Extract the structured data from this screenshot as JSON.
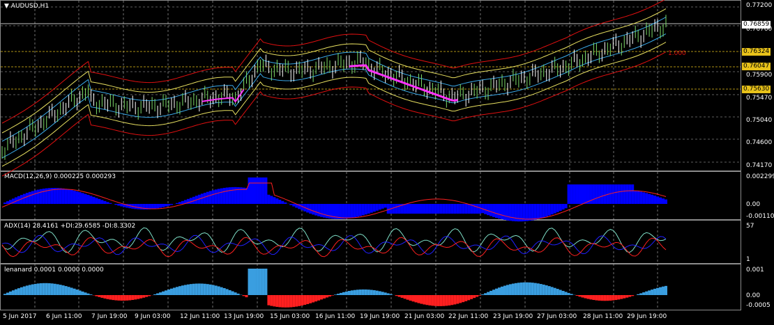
{
  "main": {
    "title": "AUDUSD,H1",
    "price_ticks": [
      "0.77200",
      "0.76760",
      "0.75900",
      "0.75470",
      "0.75040",
      "0.74600",
      "0.74170"
    ],
    "price_tags": [
      {
        "text": "0.76859",
        "bg": "#ffffff",
        "fg": "#000000"
      },
      {
        "text": "0.76324",
        "bg": "#e8c21a",
        "fg": "#000000"
      },
      {
        "text": "0.76047",
        "bg": "#e8c21a",
        "fg": "#000000"
      },
      {
        "text": "0.75630",
        "bg": "#e8c21a",
        "fg": "#000000"
      }
    ],
    "level_label": "1.000",
    "colors": {
      "bull": "#7ddc6a",
      "bear": "#ffffff",
      "band_red": "#e01010",
      "band_yellow": "#e8e060",
      "band_blue": "#3aa9e8",
      "highlight": "#ff33ff"
    }
  },
  "macd": {
    "header": "MACD(12,26,9) 0.000225 0.000293",
    "ticks": [
      "0.002299",
      "0.00",
      "-0.001105"
    ],
    "colors": {
      "hist": "#0000ff",
      "signal": "#ff2020"
    }
  },
  "adx": {
    "header": "ADX(14) 28.4161 +DI:29.6585 -DI:8.3302",
    "ticks": [
      "57",
      "1"
    ],
    "colors": {
      "adx": "#7fe0c8",
      "plus": "#2020ff",
      "minus": "#ff2020"
    }
  },
  "lenanard": {
    "header": "lenanard 0.0001 0.0000 0.0000",
    "ticks": [
      "0.001",
      "0.00",
      "-0.0005"
    ],
    "colors": {
      "pos": "#3a9ee0",
      "neg": "#ff2020"
    }
  },
  "time_labels": [
    "5 Jun 2017",
    "6 Jun 11:00",
    "7 Jun 19:00",
    "9 Jun 03:00",
    "12 Jun 11:00",
    "13 Jun 19:00",
    "15 Jun 03:00",
    "16 Jun 11:00",
    "19 Jun 19:00",
    "21 Jun 03:00",
    "22 Jun 11:00",
    "23 Jun 19:00",
    "27 Jun 03:00",
    "28 Jun 11:00",
    "29 Jun 19:00"
  ]
}
